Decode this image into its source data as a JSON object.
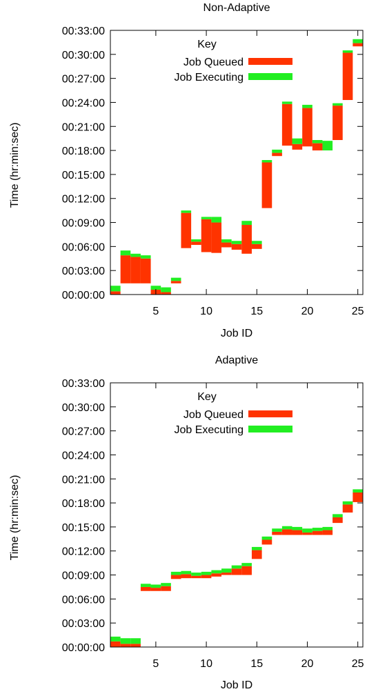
{
  "chart_data": [
    {
      "type": "bar",
      "title": "Non-Adaptive",
      "xlabel": "Job ID",
      "ylabel": "Time (hr:min:sec)",
      "xlim": [
        0.5,
        25.5
      ],
      "ylim": [
        0,
        33
      ],
      "x_ticks": [
        5,
        10,
        15,
        20,
        25
      ],
      "y_ticks": [
        {
          "value": 0,
          "label": "00:00:00"
        },
        {
          "value": 3,
          "label": "00:03:00"
        },
        {
          "value": 6,
          "label": "00:06:00"
        },
        {
          "value": 9,
          "label": "00:09:00"
        },
        {
          "value": 12,
          "label": "00:12:00"
        },
        {
          "value": 15,
          "label": "00:15:00"
        },
        {
          "value": 18,
          "label": "00:18:00"
        },
        {
          "value": 21,
          "label": "00:21:00"
        },
        {
          "value": 24,
          "label": "00:24:00"
        },
        {
          "value": 27,
          "label": "00:27:00"
        },
        {
          "value": 30,
          "label": "00:30:00"
        },
        {
          "value": 33,
          "label": "00:33:00"
        }
      ],
      "legend": {
        "title": "Key",
        "placement": "top-left",
        "entries": [
          {
            "label": "Job Queued",
            "color": "#ff3300"
          },
          {
            "label": "Job Executing",
            "color": "#22ee22"
          }
        ]
      },
      "jobs": [
        {
          "id": 1,
          "queued_start": 0.0,
          "exec_start": 0.4,
          "end": 1.1
        },
        {
          "id": 2,
          "queued_start": 1.4,
          "exec_start": 4.9,
          "end": 5.5
        },
        {
          "id": 3,
          "queued_start": 1.4,
          "exec_start": 4.7,
          "end": 5.1
        },
        {
          "id": 4,
          "queued_start": 1.4,
          "exec_start": 4.5,
          "end": 4.9
        },
        {
          "id": 5,
          "queued_start": 0.0,
          "exec_start": 0.6,
          "end": 1.1
        },
        {
          "id": 6,
          "queued_start": 0.0,
          "exec_start": 0.3,
          "end": 0.9
        },
        {
          "id": 7,
          "queued_start": 1.4,
          "exec_start": 1.7,
          "end": 2.1
        },
        {
          "id": 8,
          "queued_start": 5.8,
          "exec_start": 10.2,
          "end": 10.5
        },
        {
          "id": 9,
          "queued_start": 6.2,
          "exec_start": 6.6,
          "end": 6.9
        },
        {
          "id": 10,
          "queued_start": 5.3,
          "exec_start": 9.4,
          "end": 9.7
        },
        {
          "id": 11,
          "queued_start": 5.2,
          "exec_start": 9.0,
          "end": 9.7
        },
        {
          "id": 12,
          "queued_start": 5.9,
          "exec_start": 6.5,
          "end": 6.9
        },
        {
          "id": 13,
          "queued_start": 5.6,
          "exec_start": 6.3,
          "end": 6.7
        },
        {
          "id": 14,
          "queued_start": 5.1,
          "exec_start": 8.7,
          "end": 9.2
        },
        {
          "id": 15,
          "queued_start": 5.7,
          "exec_start": 6.3,
          "end": 6.7
        },
        {
          "id": 16,
          "queued_start": 10.8,
          "exec_start": 16.5,
          "end": 16.8
        },
        {
          "id": 17,
          "queued_start": 17.3,
          "exec_start": 17.7,
          "end": 18.1
        },
        {
          "id": 18,
          "queued_start": 18.6,
          "exec_start": 23.8,
          "end": 24.1
        },
        {
          "id": 19,
          "queued_start": 18.1,
          "exec_start": 18.8,
          "end": 19.5
        },
        {
          "id": 20,
          "queued_start": 18.5,
          "exec_start": 23.3,
          "end": 23.7
        },
        {
          "id": 21,
          "queued_start": 18.0,
          "exec_start": 18.9,
          "end": 19.3
        },
        {
          "id": 22,
          "queued_start": 18.0,
          "exec_start": 18.0,
          "end": 19.2
        },
        {
          "id": 23,
          "queued_start": 19.3,
          "exec_start": 23.6,
          "end": 23.9
        },
        {
          "id": 24,
          "queued_start": 24.3,
          "exec_start": 30.2,
          "end": 30.5
        },
        {
          "id": 25,
          "queued_start": 31.0,
          "exec_start": 31.4,
          "end": 31.9
        }
      ]
    },
    {
      "type": "bar",
      "title": "Adaptive",
      "xlabel": "Job ID",
      "ylabel": "Time (hr:min:sec)",
      "xlim": [
        0.5,
        25.5
      ],
      "ylim": [
        0,
        33
      ],
      "x_ticks": [
        5,
        10,
        15,
        20,
        25
      ],
      "y_ticks": [
        {
          "value": 0,
          "label": "00:00:00"
        },
        {
          "value": 3,
          "label": "00:03:00"
        },
        {
          "value": 6,
          "label": "00:06:00"
        },
        {
          "value": 9,
          "label": "00:09:00"
        },
        {
          "value": 12,
          "label": "00:12:00"
        },
        {
          "value": 15,
          "label": "00:15:00"
        },
        {
          "value": 18,
          "label": "00:18:00"
        },
        {
          "value": 21,
          "label": "00:21:00"
        },
        {
          "value": 24,
          "label": "00:24:00"
        },
        {
          "value": 27,
          "label": "00:27:00"
        },
        {
          "value": 30,
          "label": "00:30:00"
        },
        {
          "value": 33,
          "label": "00:33:00"
        }
      ],
      "legend": {
        "title": "Key",
        "placement": "top-left",
        "entries": [
          {
            "label": "Job Queued",
            "color": "#ff3300"
          },
          {
            "label": "Job Executing",
            "color": "#22ee22"
          }
        ]
      },
      "jobs": [
        {
          "id": 1,
          "queued_start": 0.0,
          "exec_start": 0.7,
          "end": 1.3
        },
        {
          "id": 2,
          "queued_start": 0.0,
          "exec_start": 0.4,
          "end": 1.1
        },
        {
          "id": 3,
          "queued_start": 0.0,
          "exec_start": 0.4,
          "end": 1.1
        },
        {
          "id": 4,
          "queued_start": 7.0,
          "exec_start": 7.5,
          "end": 7.9
        },
        {
          "id": 5,
          "queued_start": 7.0,
          "exec_start": 7.4,
          "end": 7.8
        },
        {
          "id": 6,
          "queued_start": 7.0,
          "exec_start": 7.6,
          "end": 8.0
        },
        {
          "id": 7,
          "queued_start": 8.5,
          "exec_start": 9.0,
          "end": 9.4
        },
        {
          "id": 8,
          "queued_start": 8.6,
          "exec_start": 9.1,
          "end": 9.5
        },
        {
          "id": 9,
          "queued_start": 8.6,
          "exec_start": 8.9,
          "end": 9.3
        },
        {
          "id": 10,
          "queued_start": 8.6,
          "exec_start": 9.0,
          "end": 9.4
        },
        {
          "id": 11,
          "queued_start": 8.8,
          "exec_start": 9.2,
          "end": 9.6
        },
        {
          "id": 12,
          "queued_start": 9.0,
          "exec_start": 9.3,
          "end": 9.8
        },
        {
          "id": 13,
          "queued_start": 9.0,
          "exec_start": 9.8,
          "end": 10.2
        },
        {
          "id": 14,
          "queued_start": 9.0,
          "exec_start": 10.1,
          "end": 10.5
        },
        {
          "id": 15,
          "queued_start": 11.0,
          "exec_start": 12.1,
          "end": 12.5
        },
        {
          "id": 16,
          "queued_start": 12.8,
          "exec_start": 13.4,
          "end": 13.8
        },
        {
          "id": 17,
          "queued_start": 14.0,
          "exec_start": 14.4,
          "end": 14.8
        },
        {
          "id": 18,
          "queued_start": 14.0,
          "exec_start": 14.7,
          "end": 15.1
        },
        {
          "id": 19,
          "queued_start": 14.0,
          "exec_start": 14.6,
          "end": 15.0
        },
        {
          "id": 20,
          "queued_start": 14.0,
          "exec_start": 14.3,
          "end": 14.8
        },
        {
          "id": 21,
          "queued_start": 14.0,
          "exec_start": 14.5,
          "end": 14.9
        },
        {
          "id": 22,
          "queued_start": 14.0,
          "exec_start": 14.6,
          "end": 15.0
        },
        {
          "id": 23,
          "queued_start": 15.5,
          "exec_start": 16.2,
          "end": 16.6
        },
        {
          "id": 24,
          "queued_start": 16.8,
          "exec_start": 17.8,
          "end": 18.2
        },
        {
          "id": 25,
          "queued_start": 18.1,
          "exec_start": 19.3,
          "end": 19.7
        }
      ]
    }
  ]
}
